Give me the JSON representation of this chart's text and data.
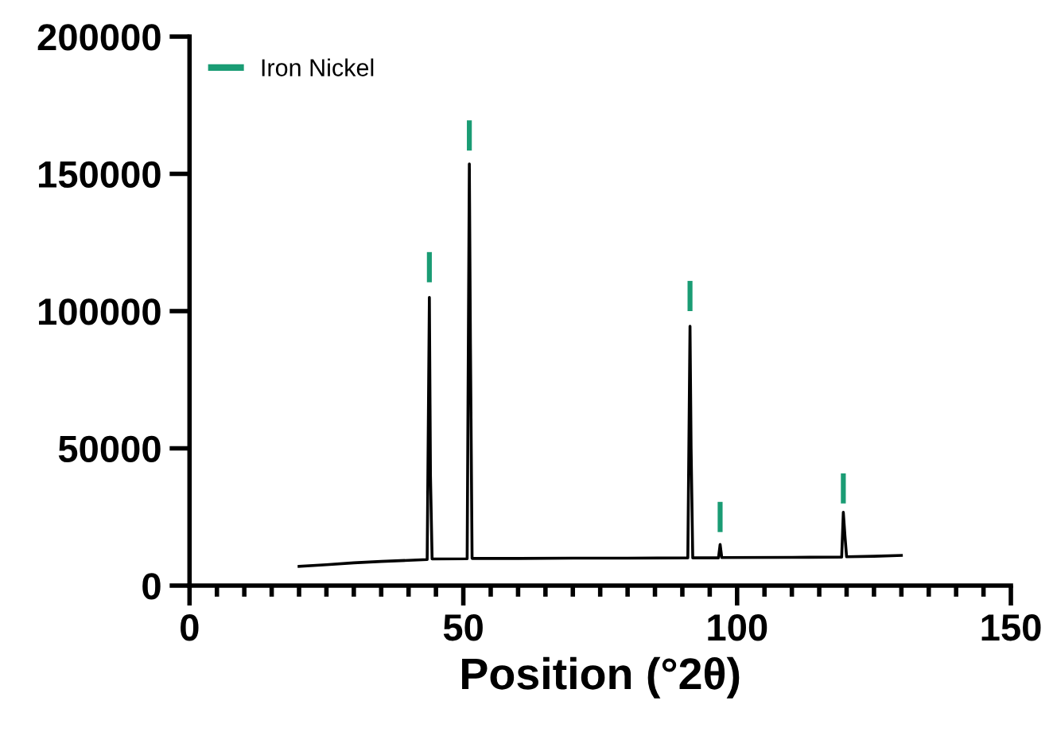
{
  "chart_data": {
    "type": "line",
    "xlabel": "Position (°2θ)",
    "xlim": [
      0,
      150
    ],
    "xticks": [
      0,
      50,
      100,
      150
    ],
    "ylim": [
      0,
      200000
    ],
    "yticks": [
      0,
      50000,
      100000,
      150000,
      200000
    ],
    "legend": "top left",
    "grid": false,
    "series": [
      {
        "color": "#000000",
        "marker": "none",
        "x": [
          20,
          25,
          30,
          35,
          40,
          43.4,
          43.8,
          44.0,
          44.3,
          50.7,
          51.1,
          51.3,
          51.6,
          60,
          70,
          80,
          91.0,
          91.4,
          91.6,
          91.9,
          96.6,
          96.9,
          97.2,
          110,
          119.1,
          119.4,
          119.7,
          120.0,
          125,
          130
        ],
        "values": [
          7000,
          7600,
          8300,
          8800,
          9200,
          9500,
          105000,
          40000,
          9700,
          9800,
          153600,
          88000,
          9900,
          9900,
          10000,
          10000,
          10100,
          94500,
          50000,
          10100,
          10100,
          15000,
          10200,
          10300,
          10400,
          26700,
          18000,
          10500,
          10700,
          11000
        ]
      },
      {
        "name": "Iron Nickel",
        "type": "bar",
        "color": "#1a9c74",
        "x": [
          43.8,
          51.1,
          91.4,
          96.9,
          119.4
        ],
        "base": [
          110500,
          158500,
          100000,
          19500,
          29900
        ],
        "values": [
          11000,
          11000,
          11000,
          11000,
          11000
        ]
      }
    ]
  }
}
